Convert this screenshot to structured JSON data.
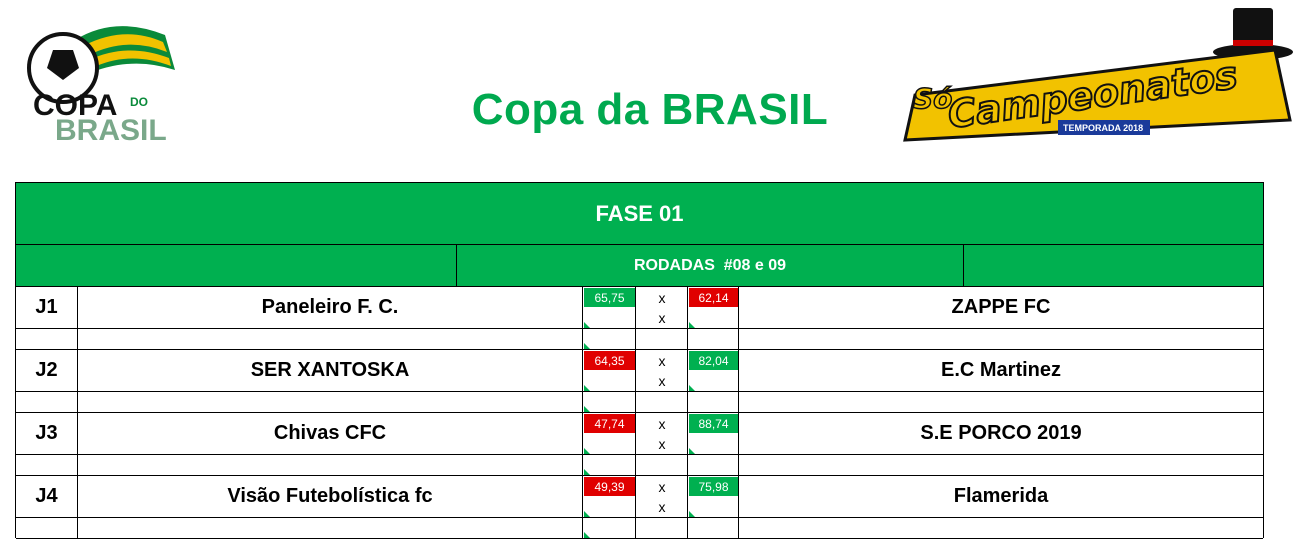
{
  "header": {
    "title": "Copa da BRASIL",
    "logo_left": {
      "line1": "COPA",
      "small": "DO",
      "line2": "BRASIL"
    },
    "logo_right": {
      "line1": "Só",
      "line2": "Campeonatos",
      "badge": "TEMPORADA 2018"
    }
  },
  "table": {
    "phase": "FASE 01",
    "rounds": "RODADAS  #08 e 09",
    "separator": "x",
    "matches": [
      {
        "id": "J1",
        "home": "Paneleiro F. C.",
        "home_score": "65,75",
        "away_score": "62,14",
        "away": "ZAPPE FC",
        "winner": "home"
      },
      {
        "id": "J2",
        "home": "SER XANTOSKA",
        "home_score": "64,35",
        "away_score": "82,04",
        "away": "E.C Martinez",
        "winner": "away"
      },
      {
        "id": "J3",
        "home": "Chivas CFC",
        "home_score": "47,74",
        "away_score": "88,74",
        "away": "S.E PORCO 2019",
        "winner": "away"
      },
      {
        "id": "J4",
        "home": "Visão Futebolística fc",
        "home_score": "49,39",
        "away_score": "75,98",
        "away": "Flamerida",
        "winner": "away"
      }
    ]
  },
  "colors": {
    "green": "#00b050",
    "title_green": "#00a94f",
    "red": "#e00000",
    "gold": "#f2c200"
  }
}
